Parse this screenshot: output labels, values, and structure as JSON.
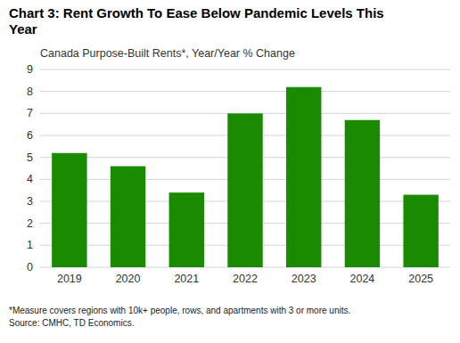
{
  "chart_data": {
    "type": "bar",
    "title": "Chart 3: Rent Growth To Ease Below Pandemic Levels This\nYear",
    "subtitle": "Canada Purpose-Built Rents*, Year/Year % Change",
    "footnote": "*Measure covers regions with 10k+ people, rows, and apartments with 3 or more units.\nSource: CMHC, TD Economics.",
    "categories": [
      "2019",
      "2020",
      "2021",
      "2022",
      "2023",
      "2024",
      "2025"
    ],
    "values": [
      5.2,
      4.6,
      3.4,
      7.0,
      8.2,
      6.7,
      3.3
    ],
    "color": "#1a8a00",
    "ylim": [
      0,
      9
    ],
    "yticks": [
      0,
      1,
      2,
      3,
      4,
      5,
      6,
      7,
      8,
      9
    ],
    "grid": true
  }
}
